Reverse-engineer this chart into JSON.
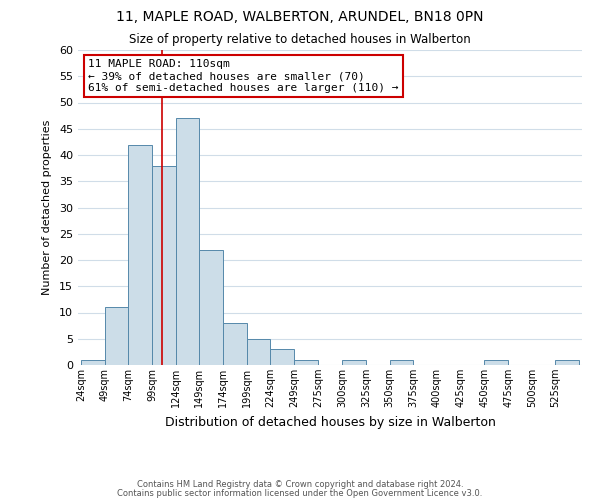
{
  "title": "11, MAPLE ROAD, WALBERTON, ARUNDEL, BN18 0PN",
  "subtitle": "Size of property relative to detached houses in Walberton",
  "xlabel": "Distribution of detached houses by size in Walberton",
  "ylabel": "Number of detached properties",
  "bin_starts": [
    24,
    49,
    74,
    99,
    124,
    149,
    174,
    199,
    224,
    249,
    275,
    300,
    325,
    350,
    375,
    400,
    425,
    450,
    475,
    500,
    525
  ],
  "bin_width": 25,
  "bar_heights": [
    1,
    11,
    42,
    38,
    47,
    22,
    8,
    5,
    3,
    1,
    0,
    1,
    0,
    1,
    0,
    0,
    0,
    1,
    0,
    0,
    1
  ],
  "bar_color": "#ccdde8",
  "bar_edge_color": "#5588aa",
  "bar_edge_width": 0.7,
  "red_line_x": 110,
  "red_line_color": "#cc0000",
  "ylim": [
    0,
    60
  ],
  "yticks": [
    0,
    5,
    10,
    15,
    20,
    25,
    30,
    35,
    40,
    45,
    50,
    55,
    60
  ],
  "annotation_title": "11 MAPLE ROAD: 110sqm",
  "annotation_line1": "← 39% of detached houses are smaller (70)",
  "annotation_line2": "61% of semi-detached houses are larger (110) →",
  "annotation_box_color": "#ffffff",
  "annotation_box_edge_color": "#cc0000",
  "footer_line1": "Contains HM Land Registry data © Crown copyright and database right 2024.",
  "footer_line2": "Contains public sector information licensed under the Open Government Licence v3.0.",
  "background_color": "#ffffff",
  "grid_color": "#d0dde8"
}
